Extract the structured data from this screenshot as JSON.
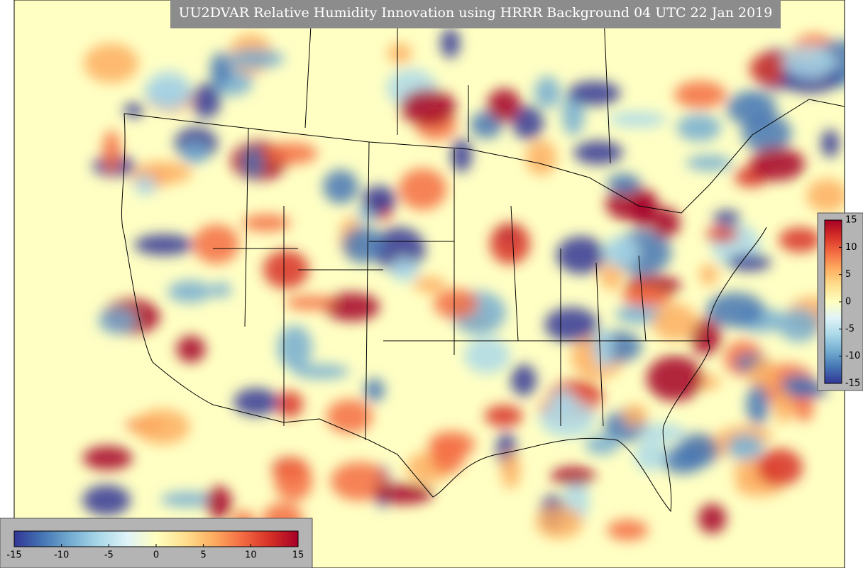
{
  "title": "UU2DVAR Relative Humidity Innovation using HRRR Background 04 UTC 22 Jan 2019",
  "colors": [
    "#313695",
    "#4575b4",
    "#74add1",
    "#abd9e9",
    "#e0f3f8",
    "#ffffbf",
    "#fee090",
    "#fdae61",
    "#f46d43",
    "#d73027",
    "#a50026"
  ],
  "colorbars": [
    {
      "orientation": "horizontal",
      "lim": [
        -15,
        15
      ],
      "ticks": [
        -15,
        -10,
        -5,
        0,
        5,
        10,
        15
      ]
    },
    {
      "orientation": "vertical",
      "lim": [
        -15,
        15
      ],
      "ticks": [
        -15,
        -10,
        -5,
        0,
        5,
        10,
        15
      ]
    }
  ]
}
